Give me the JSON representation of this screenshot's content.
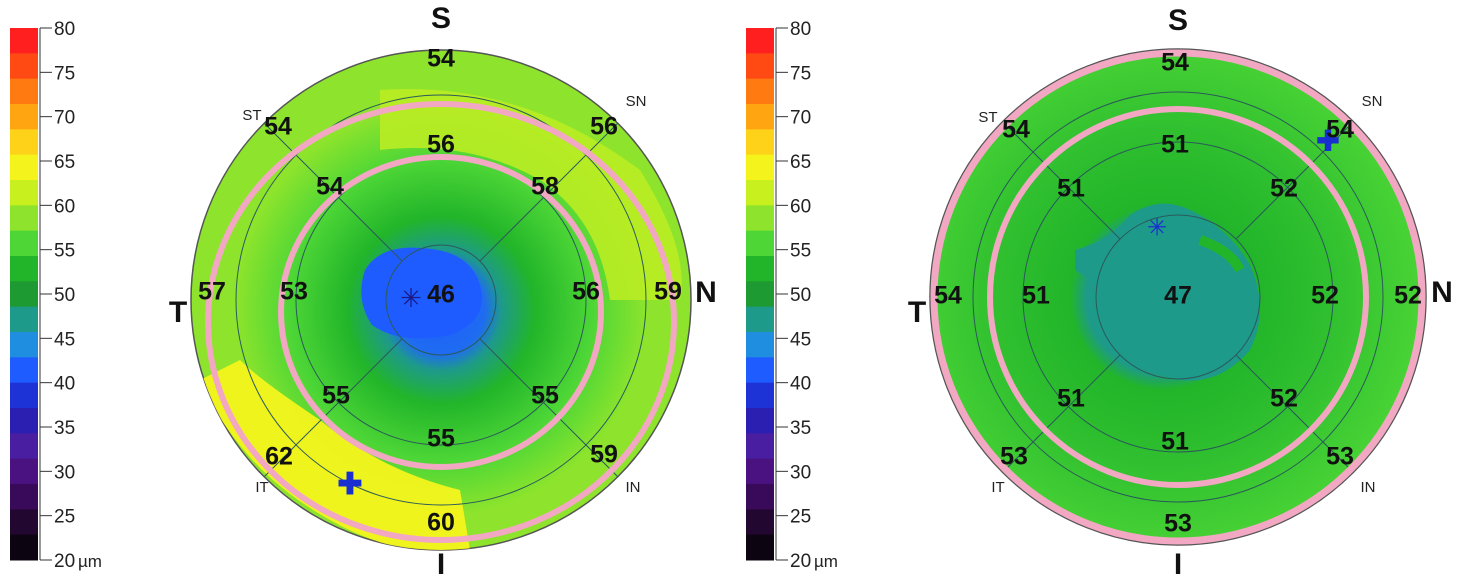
{
  "scale": {
    "ticks": [
      "80",
      "75",
      "70",
      "65",
      "60",
      "55",
      "50",
      "45",
      "40",
      "35",
      "30",
      "25",
      "20"
    ],
    "unit": "µm",
    "colors": [
      "#ff1f1f",
      "#ff4a14",
      "#ff7a10",
      "#ffa512",
      "#ffd21a",
      "#f4f41c",
      "#c8f01f",
      "#8ee42c",
      "#4dd636",
      "#22b52a",
      "#1e9a32",
      "#1e9a8a",
      "#1f8ee0",
      "#1f5cff",
      "#1e33d6",
      "#2a1fb0",
      "#4a1ea0",
      "#4a1280",
      "#3a0a5a",
      "#220830",
      "#0c0410"
    ]
  },
  "maps": [
    {
      "id": "left",
      "directions": {
        "S": "S",
        "I": "I",
        "T": "T",
        "N": "N",
        "ST": "ST",
        "SN": "SN",
        "IT": "IT",
        "IN": "IN"
      },
      "sectors": {
        "center": "46",
        "inner_s": "56",
        "inner_n": "56",
        "inner_i": "55",
        "inner_t": "53",
        "mid_st": "54",
        "mid_sn": "58",
        "mid_in": "55",
        "mid_it": "55",
        "outer_s": "54",
        "outer_n": "59",
        "outer_i": "60",
        "outer_t": "57",
        "outer_st": "54",
        "outer_sn": "56",
        "outer_in": "59",
        "outer_it": "62"
      }
    },
    {
      "id": "right",
      "directions": {
        "S": "S",
        "I": "I",
        "T": "T",
        "N": "N",
        "ST": "ST",
        "SN": "SN",
        "IT": "IT",
        "IN": "IN"
      },
      "sectors": {
        "center": "47",
        "inner_s": "51",
        "inner_n": "52",
        "inner_i": "51",
        "inner_t": "51",
        "mid_st": "51",
        "mid_sn": "52",
        "mid_in": "52",
        "mid_it": "51",
        "outer_s": "54",
        "outer_n": "52",
        "outer_i": "53",
        "outer_t": "54",
        "outer_st": "54",
        "outer_sn": "54",
        "outer_in": "53",
        "outer_it": "53"
      }
    }
  ]
}
